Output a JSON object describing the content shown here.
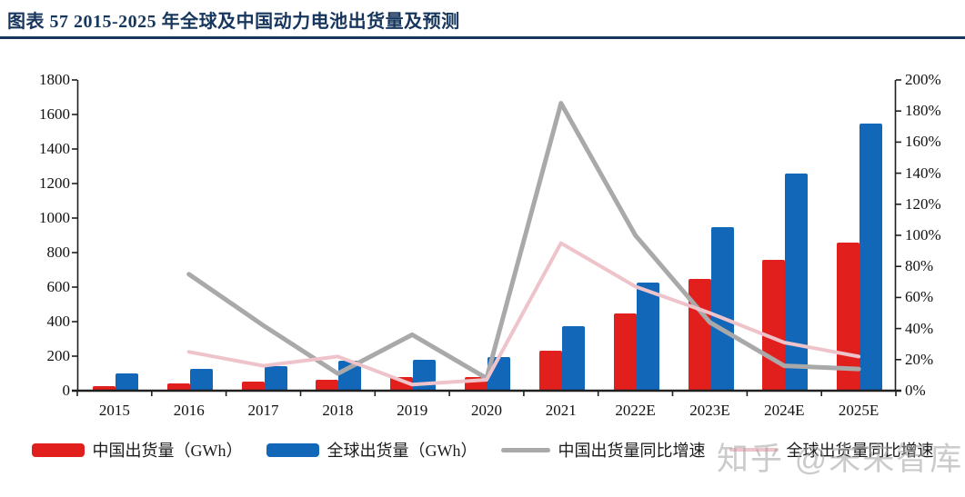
{
  "header": {
    "title": "图表 57   2015-2025 年全球及中国动力电池出货量及预测"
  },
  "watermark": {
    "text": "知乎 @未来智库"
  },
  "colors": {
    "title_navy": "#17365d",
    "china_bar_red": "#e1201e",
    "global_bar_blue": "#1267b8",
    "china_growth_gray": "#a9a9a9",
    "global_growth_pink": "#eec3ca",
    "axis_dark": "#1f1f1f"
  },
  "chart_data": {
    "type": "bar+line combo",
    "title": "2015-2025 年全球及中国动力电池出货量及预测",
    "categories": [
      "2015",
      "2016",
      "2017",
      "2018",
      "2019",
      "2020",
      "2021",
      "2022E",
      "2023E",
      "2024E",
      "2025E"
    ],
    "series": [
      {
        "name": "中国出货量（GWh）",
        "type": "bar",
        "axis": "left",
        "color": "#e1201e",
        "values": [
          25,
          40,
          55,
          62,
          80,
          80,
          230,
          450,
          650,
          760,
          860
        ]
      },
      {
        "name": "全球出货量（GWh）",
        "type": "bar",
        "axis": "left",
        "color": "#1267b8",
        "values": [
          100,
          125,
          140,
          175,
          180,
          195,
          375,
          625,
          950,
          1260,
          1550
        ]
      },
      {
        "name": "中国出货量同比增速",
        "type": "line",
        "axis": "right",
        "color": "#a9a9a9",
        "stroke_width": 5,
        "values_pct": [
          null,
          75,
          42,
          11,
          36,
          8,
          185,
          100,
          44,
          16,
          14
        ]
      },
      {
        "name": "全球出货量同比增速",
        "type": "line",
        "axis": "right",
        "color": "#eec3ca",
        "stroke_width": 4,
        "values_pct": [
          null,
          25,
          16,
          22,
          4,
          7,
          95,
          67,
          50,
          31,
          22
        ]
      }
    ],
    "left_axis": {
      "min": 0,
      "max": 1800,
      "step": 200,
      "tick_labels": [
        "0",
        "200",
        "400",
        "600",
        "800",
        "1000",
        "1200",
        "1400",
        "1600",
        "1800"
      ]
    },
    "right_axis": {
      "min_pct": 0,
      "max_pct": 200,
      "step_pct": 20,
      "tick_labels": [
        "0%",
        "20%",
        "40%",
        "60%",
        "80%",
        "100%",
        "120%",
        "140%",
        "160%",
        "180%",
        "200%"
      ]
    },
    "grid": "off",
    "legend_position": "bottom"
  }
}
